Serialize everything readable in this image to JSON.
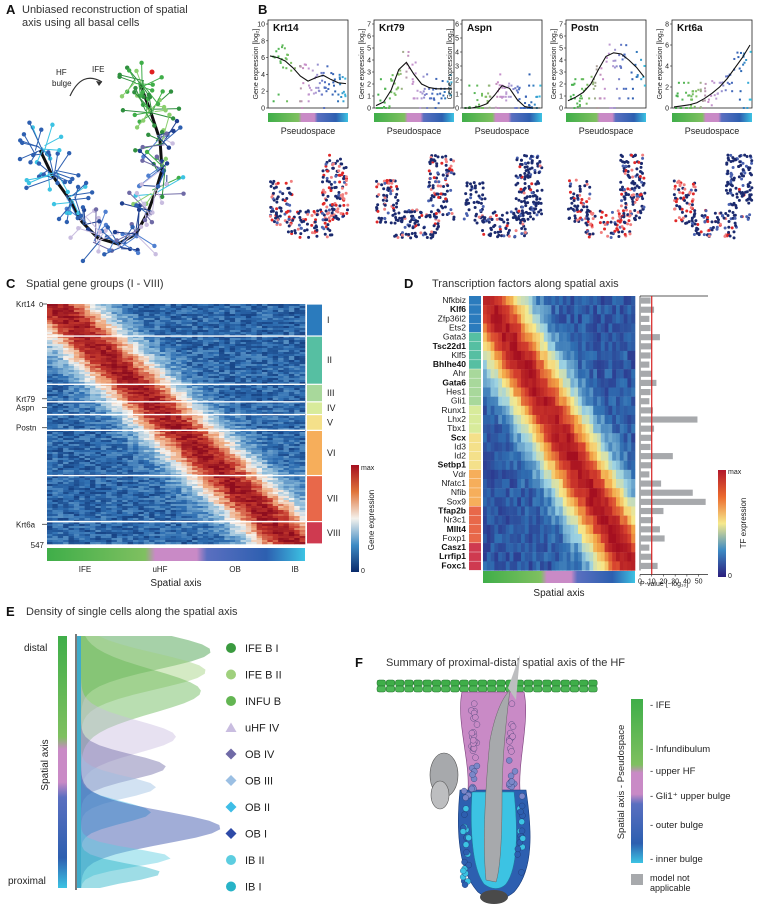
{
  "panels": {
    "A": {
      "label": "A",
      "title_lines": [
        "Unbiased reconstruction of spatial",
        "axis using all basal cells"
      ],
      "hf_bulge_lines": [
        "HF",
        "bulge"
      ],
      "ife": "IFE"
    },
    "B": {
      "label": "B",
      "ylabel": "Gene expression [log₂]",
      "xlabel": "Pseudospace",
      "genes": [
        {
          "name": "Krt14",
          "ymax": 10,
          "ticks": [
            0,
            2,
            4,
            6,
            8,
            10
          ],
          "curve": [
            6.2,
            6.0,
            5.6,
            4.8,
            3.8,
            3.2,
            3.6,
            3.9,
            3.4,
            3.0,
            2.9
          ]
        },
        {
          "name": "Krt79",
          "ymax": 7,
          "ticks": [
            0,
            1,
            2,
            3,
            4,
            5,
            6,
            7
          ],
          "curve": [
            0.2,
            0.5,
            1.5,
            3.2,
            3.8,
            2.8,
            2.0,
            1.7,
            1.6,
            1.6,
            1.6
          ]
        },
        {
          "name": "Aspn",
          "ymax": 6,
          "ticks": [
            0,
            1,
            2,
            3,
            4,
            5,
            6
          ],
          "curve": [
            0.0,
            0.0,
            0.1,
            0.3,
            0.9,
            1.6,
            1.4,
            0.6,
            0.1,
            0.0,
            0.0
          ]
        },
        {
          "name": "Postn",
          "ymax": 7,
          "ticks": [
            0,
            1,
            2,
            3,
            4,
            5,
            6,
            7
          ],
          "curve": [
            0.6,
            0.9,
            1.3,
            2.0,
            3.2,
            4.3,
            4.6,
            4.5,
            4.0,
            3.4,
            2.6
          ]
        },
        {
          "name": "Krt6a",
          "ymax": 8,
          "ticks": [
            0,
            2,
            4,
            6,
            8
          ],
          "curve": [
            0.1,
            0.2,
            0.3,
            0.5,
            0.9,
            1.4,
            2.0,
            2.8,
            3.8,
            4.8,
            6.0
          ]
        }
      ]
    },
    "C": {
      "label": "C",
      "title": "Spatial gene groups (I - VIII)",
      "gene_labels": [
        {
          "text": "Krt14",
          "row": 0
        },
        {
          "text": "Krt79",
          "row": 216
        },
        {
          "text": "Aspn",
          "row": 236
        },
        {
          "text": "Postn",
          "row": 282
        },
        {
          "text": "Krt6a",
          "row": 502
        }
      ],
      "row_start": "0",
      "row_end": "547",
      "groups": [
        {
          "name": "I",
          "color": "#2b7bbd",
          "start": 0,
          "end": 73
        },
        {
          "name": "II",
          "color": "#56bfa2",
          "start": 73,
          "end": 183
        },
        {
          "name": "III",
          "color": "#a8d89b",
          "start": 183,
          "end": 223
        },
        {
          "name": "IV",
          "color": "#d8eb9b",
          "start": 223,
          "end": 252
        },
        {
          "name": "V",
          "color": "#f4e08a",
          "start": 252,
          "end": 288
        },
        {
          "name": "VI",
          "color": "#f6ae5b",
          "start": 288,
          "end": 391
        },
        {
          "name": "VII",
          "color": "#e8684a",
          "start": 391,
          "end": 496
        },
        {
          "name": "VIII",
          "color": "#cf3a50",
          "start": 496,
          "end": 547
        }
      ],
      "axis_ticks": [
        "IFE",
        "uHF",
        "OB",
        "IB"
      ],
      "xlabel": "Spatial axis",
      "colorbar_label": "Gene expression",
      "cb_max": "max",
      "cb_min": "0"
    },
    "D": {
      "label": "D",
      "title": "Transcription factors along spatial axis",
      "factors": [
        {
          "name": "Nfkbiz",
          "bold": false,
          "p": 9
        },
        {
          "name": "Klf6",
          "bold": true,
          "p": 12
        },
        {
          "name": "Zfp36l2",
          "bold": false,
          "p": 8
        },
        {
          "name": "Ets2",
          "bold": false,
          "p": 9
        },
        {
          "name": "Gata3",
          "bold": false,
          "p": 17
        },
        {
          "name": "Tsc22d1",
          "bold": true,
          "p": 10
        },
        {
          "name": "Klf5",
          "bold": false,
          "p": 9
        },
        {
          "name": "Bhlhe40",
          "bold": true,
          "p": 8
        },
        {
          "name": "Ahr",
          "bold": false,
          "p": 10
        },
        {
          "name": "Gata6",
          "bold": true,
          "p": 14
        },
        {
          "name": "Hes1",
          "bold": false,
          "p": 9
        },
        {
          "name": "Gli1",
          "bold": false,
          "p": 8
        },
        {
          "name": "Runx1",
          "bold": false,
          "p": 11
        },
        {
          "name": "Lhx2",
          "bold": false,
          "p": 49
        },
        {
          "name": "Tbx1",
          "bold": false,
          "p": 12
        },
        {
          "name": "Scx",
          "bold": true,
          "p": 10
        },
        {
          "name": "Id3",
          "bold": false,
          "p": 9
        },
        {
          "name": "Id2",
          "bold": false,
          "p": 28
        },
        {
          "name": "Setbp1",
          "bold": true,
          "p": 10
        },
        {
          "name": "Vdr",
          "bold": false,
          "p": 8
        },
        {
          "name": "Nfatc1",
          "bold": false,
          "p": 18
        },
        {
          "name": "Nfib",
          "bold": false,
          "p": 45
        },
        {
          "name": "Sox9",
          "bold": false,
          "p": 56
        },
        {
          "name": "Tfap2b",
          "bold": true,
          "p": 20
        },
        {
          "name": "Nr3c1",
          "bold": false,
          "p": 11
        },
        {
          "name": "Mllt4",
          "bold": true,
          "p": 17
        },
        {
          "name": "Foxp1",
          "bold": false,
          "p": 21
        },
        {
          "name": "Casz1",
          "bold": true,
          "p": 8
        },
        {
          "name": "Lrrfip1",
          "bold": true,
          "p": 10
        },
        {
          "name": "Foxc1",
          "bold": true,
          "p": 15
        }
      ],
      "pvalue_ticks": [
        "0",
        "10",
        "20",
        "30",
        "40",
        "50"
      ],
      "pvalue_label": "P-value [−log₁₀]",
      "xlabel": "Spatial axis",
      "colorbar_label": "TF expression",
      "cb_max": "max",
      "cb_min": "0"
    },
    "E": {
      "label": "E",
      "title": "Density of single cells along the spatial axis",
      "distal": "distal",
      "proximal": "proximal",
      "ylabel": "Spatial axis",
      "legend": [
        {
          "name": "IFE B I",
          "color": "#3a9a3f",
          "shape": "circle"
        },
        {
          "name": "IFE B II",
          "color": "#9fd07d",
          "shape": "circle"
        },
        {
          "name": "INFU B",
          "color": "#63b552",
          "shape": "circle"
        },
        {
          "name": "uHF IV",
          "color": "#c9bde0",
          "shape": "triangle"
        },
        {
          "name": "OB IV",
          "color": "#6f6aa6",
          "shape": "diamond"
        },
        {
          "name": "OB III",
          "color": "#9bbfe3",
          "shape": "diamond"
        },
        {
          "name": "OB II",
          "color": "#3ebde6",
          "shape": "diamond"
        },
        {
          "name": "OB I",
          "color": "#2e4aa7",
          "shape": "diamond"
        },
        {
          "name": "IB II",
          "color": "#5ccde0",
          "shape": "circle"
        },
        {
          "name": "IB I",
          "color": "#27b3c7",
          "shape": "circle"
        }
      ]
    },
    "F": {
      "label": "F",
      "title": "Summary of proximal-distal spatial axis of the HF",
      "axis_label": "Spatial axis - Pseudospace",
      "annotations": [
        "- IFE",
        "- Infundibulum",
        "- upper HF",
        "- Gli1⁺ upper bulge",
        "- outer bulge",
        "- inner bulge"
      ],
      "na_lines": [
        "model not",
        "applicable"
      ]
    }
  },
  "colors": {
    "ife_green": "#3fae49",
    "uhf_pink": "#c98ac6",
    "ob_blue": "#2d5fb0",
    "ib_cyan": "#3cc3e3",
    "heat_low": "#0a2a6b",
    "heat_high": "#b2182b"
  }
}
